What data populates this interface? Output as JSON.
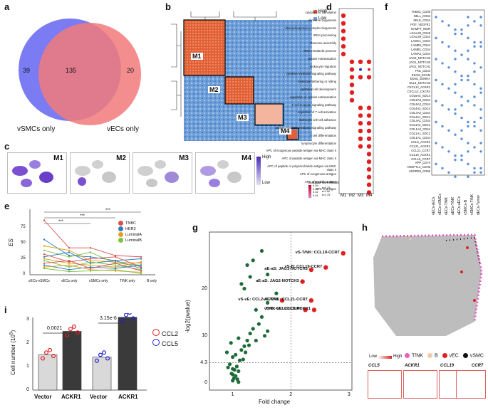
{
  "panels": {
    "a": "a",
    "b": "b",
    "c": "c",
    "d": "d",
    "e": "e",
    "f": "f",
    "g": "g",
    "h": "h",
    "i": "i"
  },
  "venn": {
    "left_only": "39",
    "overlap": "135",
    "right_only": "20",
    "left_label": "vSMCs only",
    "right_label": "vECs only",
    "left_color": "#6d6df2",
    "right_color": "#f27a7a"
  },
  "heatmap": {
    "legend_high": "High",
    "legend_low": "Low",
    "modules": [
      "M1",
      "M2",
      "M3",
      "M4"
    ]
  },
  "umap": {
    "modules": [
      "M1",
      "M2",
      "M3",
      "M4"
    ],
    "legend_high": "High",
    "legend_low": "Low"
  },
  "dotplot_d": {
    "terms": [
      "cytoplasmic translation",
      "ribosome biogenesis",
      "ribonucleoprotein complex biogenesis",
      "rRNA processing",
      "ribosome assembly",
      "rRNA metabolic process",
      "cellular extravasation",
      "leukocyte migration",
      "cytokine-mediated signaling pathway",
      "leukocyte tethering or rolling",
      "epithelial cell development",
      "regulation of cellular extravasation",
      "T cell receptor signaling pathway",
      "regulation of T cell activation",
      "leukocyte cell-cell adhesion",
      "antigen receptor-mediated signaling pathway",
      "T cell differentiation",
      "lymphocyte differentiation",
      "APC of exogenous peptide antigen via MHC class II",
      "APC of peptide antigen via MHC class II",
      "APC of peptide or polysaccharide antigen via MHC class II",
      "APC of exogenous antigen",
      "APC of peptide antigen",
      "APC of antigen"
    ],
    "modules": [
      "M1",
      "M2",
      "M3",
      "M4"
    ],
    "legend_padj": "p.adjust",
    "legend_generatio": "GeneRatio",
    "padj_values": [
      "0.04",
      "0.03",
      "0.02",
      "0.01"
    ],
    "generatio_values": [
      "0.25",
      "0.50",
      "0.75"
    ]
  },
  "dotplot_f": {
    "pairs": [
      "THBS1_CD36",
      "SELL_CD34",
      "SELE_CD44",
      "PGF_VEGFR1",
      "NAMPT_INSR",
      "LGALS9_CD45",
      "LGALS9_CD44",
      "LAMC1_CD44",
      "LAMB2_CD44",
      "LAMB1_CD44",
      "LAMA4_CD44",
      "JAG2_NOTCH3",
      "JAG1_NOTCH3",
      "JAG1_NOTCH1",
      "FN1_CD44",
      "ESAM_ESAM",
      "EDN1_EDNRA",
      "DLL4_NOTCH3",
      "CXCL12_ACKR1",
      "CXCL12_CXCR4",
      "COL6A3_SDC4",
      "COL6A3_CD44",
      "COL6A2_CD44",
      "COL4A2_SDC4",
      "COL4A2_CD44",
      "COL4A1_SDC4",
      "COL4A1_CD44",
      "COL1A2_SDC1",
      "COL1A2_CD44",
      "COL1A1_SDC1",
      "COL1A1_CD44",
      "CCL5_ACKR1",
      "CCL21_ACKR1",
      "CCL21_CCR7",
      "CCL19_ACKR1",
      "CCL19_CCR7",
      "APP_CD74",
      "ANGPTL4_CDH5",
      "ADGRE5_CD55"
    ],
    "groups": [
      "vECs-vECs",
      "vECs-vSMCs",
      "vECs-T/NK",
      "aECs-T/NK",
      "aECs-aECs",
      "vSMCs-B",
      "vSMCs-T/NK",
      "dECs-Tumor"
    ]
  },
  "line_plot": {
    "ylabel": "ES",
    "yticks": [
      "0",
      "25",
      "50",
      "75"
    ],
    "categories": [
      "vECs-vSMCs",
      "vECs only",
      "vSMCs only",
      "T/NK only",
      "B only"
    ],
    "legend": [
      "TNBC",
      "HER2",
      "LuminalA",
      "LuminalB"
    ],
    "legend_colors": [
      "#d94f4f",
      "#2f7bbf",
      "#e0a020",
      "#7cc242"
    ],
    "significance": [
      "***",
      "***",
      "***"
    ]
  },
  "bar_chart": {
    "ylabel": "Cell number (10",
    "ylabel_sup": "5",
    "ylabel_end": ")",
    "yticks": [
      "0",
      "1",
      "2",
      "3"
    ],
    "pvals": [
      "0.0021",
      "3.15e-6"
    ],
    "groups": [
      "Vector",
      "ACKR1",
      "Vector",
      "ACKR1"
    ],
    "legend": [
      "CCL2",
      "CCL5"
    ],
    "legend_colors": [
      "#e02020",
      "#2020d0"
    ]
  },
  "chart_data": {
    "type": "scatter",
    "title": "",
    "xlabel": "Fold change",
    "ylabel": "-log2(pvalue)",
    "xticks": [
      "1",
      "2",
      "3"
    ],
    "yticks": [
      "0",
      "4.3",
      "10",
      "20"
    ],
    "threshold_x": 2,
    "threshold_y": 4.3,
    "highlighted": [
      {
        "label": "vS-T/NK: CCL19-CCR7",
        "x": 2.9,
        "y": 27.5
      },
      {
        "label": "vS-B: CCL19-CCR7",
        "x": 2.6,
        "y": 24.5
      },
      {
        "label": "aE-aS: JAG1-NOTCH3",
        "x": 2.35,
        "y": 24.0
      },
      {
        "label": "aE-aS: JAG2-NOTCH3",
        "x": 2.2,
        "y": 21.5
      },
      {
        "label": "vS-vE: CCL2-ACKR1",
        "x": 1.85,
        "y": 17.5
      },
      {
        "label": "vS-T/NK: CCL21-CCR7",
        "x": 2.35,
        "y": 17.5
      },
      {
        "label": "vS-B: CCL21-CCR7",
        "x": 2.25,
        "y": 15.5
      },
      {
        "label": "T/NK-vE: CCL5-ACKR1",
        "x": 2.4,
        "y": 15.5
      }
    ],
    "background_points": [
      [
        1.0,
        0.5
      ],
      [
        1.02,
        1.0
      ],
      [
        1.05,
        1.5
      ],
      [
        0.98,
        2.0
      ],
      [
        1.1,
        2.5
      ],
      [
        1.0,
        3.0
      ],
      [
        1.07,
        3.5
      ],
      [
        0.95,
        4.0
      ],
      [
        1.12,
        4.8
      ],
      [
        1.0,
        5.5
      ],
      [
        1.05,
        6.0
      ],
      [
        0.9,
        6.5
      ],
      [
        1.15,
        7.0
      ],
      [
        1.2,
        7.8
      ],
      [
        0.97,
        8.5
      ],
      [
        1.25,
        9.0
      ],
      [
        1.1,
        9.5
      ],
      [
        1.3,
        10.5
      ],
      [
        1.35,
        11.5
      ],
      [
        1.45,
        12.5
      ],
      [
        1.5,
        14.0
      ],
      [
        1.4,
        15.5
      ],
      [
        1.6,
        17.0
      ],
      [
        1.2,
        20.0
      ],
      [
        1.15,
        21.0
      ],
      [
        1.3,
        22.5
      ],
      [
        1.6,
        23.0
      ],
      [
        1.25,
        25.0
      ],
      [
        1.35,
        26.0
      ],
      [
        1.5,
        28.0
      ],
      [
        1.0,
        1.8
      ],
      [
        1.08,
        0.8
      ],
      [
        1.03,
        2.8
      ],
      [
        0.92,
        3.3
      ],
      [
        1.18,
        5.0
      ],
      [
        1.22,
        6.5
      ],
      [
        1.28,
        8.0
      ],
      [
        1.4,
        9.0
      ],
      [
        1.55,
        10.0
      ],
      [
        1.6,
        11.0
      ],
      [
        1.75,
        19.0
      ],
      [
        1.1,
        0.2
      ]
    ]
  },
  "spatial": {
    "legend_low": "Low",
    "legend_high": "High",
    "legend_items": [
      "T/NK",
      "B",
      "vEC",
      "vSMC"
    ],
    "legend_colors": [
      "#e55fbf",
      "#f4c9a8",
      "#e02020",
      "#111111"
    ],
    "genes": [
      "CCL5",
      "ACKR1",
      "CCL19",
      "CCR7"
    ]
  }
}
